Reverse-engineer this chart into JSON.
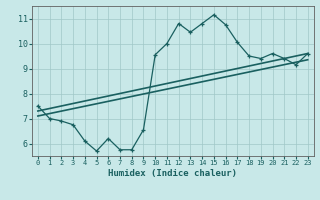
{
  "xlabel": "Humidex (Indice chaleur)",
  "bg_color": "#c8e8e8",
  "grid_color": "#a0c8c8",
  "line_color": "#1a6060",
  "x_data": [
    0,
    1,
    2,
    3,
    4,
    5,
    6,
    7,
    8,
    9,
    10,
    11,
    12,
    13,
    14,
    15,
    16,
    17,
    18,
    19,
    20,
    21,
    22,
    23
  ],
  "y_main": [
    7.5,
    7.0,
    6.9,
    6.75,
    6.1,
    5.7,
    6.2,
    5.75,
    5.75,
    6.55,
    9.55,
    10.0,
    10.8,
    10.45,
    10.8,
    11.15,
    10.75,
    10.05,
    9.5,
    9.4,
    9.6,
    9.4,
    9.15,
    9.6
  ],
  "y_reg1_start": 7.3,
  "y_reg1_end": 9.6,
  "y_reg2_start": 7.1,
  "y_reg2_end": 9.35,
  "ylim": [
    5.5,
    11.5
  ],
  "xlim": [
    -0.5,
    23.5
  ],
  "yticks": [
    6,
    7,
    8,
    9,
    10,
    11
  ],
  "xticks": [
    0,
    1,
    2,
    3,
    4,
    5,
    6,
    7,
    8,
    9,
    10,
    11,
    12,
    13,
    14,
    15,
    16,
    17,
    18,
    19,
    20,
    21,
    22,
    23
  ]
}
